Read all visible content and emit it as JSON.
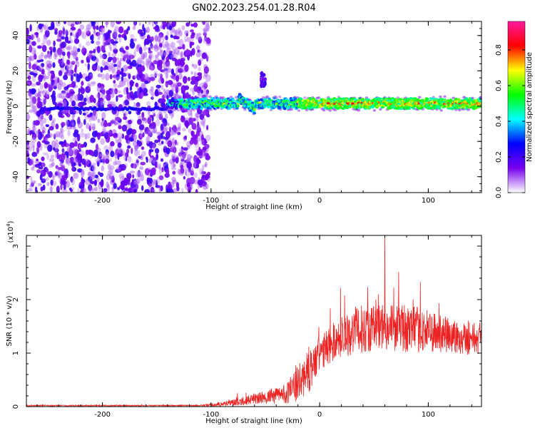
{
  "figure_title": "GN02.2023.254.01.28.R04",
  "chart_data": [
    {
      "type": "heatmap",
      "xlabel": "Height of straight line (km)",
      "ylabel": "Frequency (Hz)",
      "xlim": [
        -270,
        149
      ],
      "ylim": [
        -49,
        48
      ],
      "x_ticks": [
        -200,
        -100,
        0,
        100
      ],
      "x_tick_labels": [
        "-200",
        "-100",
        "0",
        "100"
      ],
      "y_ticks": [
        -40,
        -20,
        0,
        20,
        40
      ],
      "y_tick_labels": [
        "-40",
        "-20",
        "0",
        "20",
        "40"
      ],
      "colorbar": {
        "label": "Normalized spectral amplitude",
        "range": [
          0,
          0.96
        ],
        "ticks": [
          0,
          0.2,
          0.4,
          0.6,
          0.8
        ],
        "tick_labels": [
          "0.0",
          "0.2",
          "0.4",
          "0.6",
          "0.8"
        ],
        "colormap": [
          "#ffffff",
          "#7700ee",
          "#0000ff",
          "#00ffff",
          "#00ff00",
          "#ffff00",
          "#ff0000",
          "#ff1aa0"
        ]
      },
      "features": {
        "noise_region_x": [
          -270,
          -112
        ],
        "signal_track_x": [
          -140,
          149
        ],
        "signal_track_freq_center": 1.5,
        "signal_track_halfwidth_hz": 4,
        "low_freq_line_x": [
          -255,
          -140
        ],
        "low_freq_line_freq": -1.5,
        "side_blob": {
          "x": -52,
          "freq": 15
        },
        "peak_amplitude_band_x": [
          -20,
          149
        ]
      },
      "grid": false
    },
    {
      "type": "line",
      "xlabel": "Height of straight line (km)",
      "ylabel": "SNR (10 * v/v)",
      "y_multiplier_label": "(x10",
      "y_multiplier_exp": "4",
      "xlim": [
        -270,
        149
      ],
      "ylim": [
        0,
        3.2
      ],
      "x_ticks": [
        -200,
        -100,
        0,
        100
      ],
      "x_tick_labels": [
        "-200",
        "-100",
        "0",
        "100"
      ],
      "y_ticks": [
        0,
        1,
        2,
        3
      ],
      "y_tick_labels": [
        "0",
        "1",
        "2",
        "3"
      ],
      "series_color": "#ee2222",
      "envelope": {
        "x": [
          -270,
          -110,
          -100,
          -80,
          -60,
          -40,
          -30,
          -20,
          -10,
          0,
          10,
          20,
          30,
          40,
          60,
          80,
          100,
          120,
          149
        ],
        "y_mean": [
          0.02,
          0.02,
          0.03,
          0.08,
          0.15,
          0.22,
          0.28,
          0.45,
          0.7,
          1.0,
          1.2,
          1.35,
          1.45,
          1.5,
          1.55,
          1.5,
          1.45,
          1.35,
          1.3
        ],
        "y_spread": [
          0.01,
          0.01,
          0.03,
          0.06,
          0.1,
          0.15,
          0.2,
          0.35,
          0.4,
          0.35,
          0.35,
          0.4,
          0.45,
          0.45,
          0.45,
          0.45,
          0.4,
          0.35,
          0.3
        ]
      },
      "peak": {
        "x": 60,
        "y": 3.2
      },
      "grid": false
    }
  ]
}
